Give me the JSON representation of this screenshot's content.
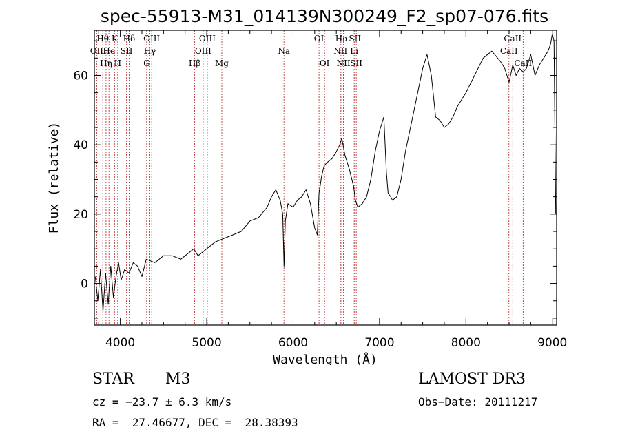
{
  "chart_data": {
    "type": "line",
    "title": "spec-55913-M31_014139N300249_F2_sp07-076.fits",
    "xlabel": "Wavelength (Å)",
    "ylabel": "Flux (relative)",
    "xlim": [
      3700,
      9050
    ],
    "ylim": [
      -12,
      73
    ],
    "xticks": [
      4000,
      5000,
      6000,
      7000,
      8000,
      9000
    ],
    "yticks": [
      0,
      20,
      40,
      60
    ],
    "series": [
      {
        "name": "spectrum",
        "x": [
          3710,
          3740,
          3770,
          3800,
          3830,
          3860,
          3890,
          3920,
          3950,
          3980,
          4010,
          4050,
          4100,
          4150,
          4200,
          4250,
          4300,
          4400,
          4500,
          4600,
          4700,
          4800,
          4850,
          4900,
          5000,
          5100,
          5200,
          5300,
          5400,
          5500,
          5600,
          5700,
          5750,
          5800,
          5850,
          5880,
          5895,
          5910,
          5940,
          6000,
          6050,
          6100,
          6150,
          6200,
          6250,
          6280,
          6300,
          6330,
          6360,
          6400,
          6450,
          6500,
          6540,
          6563,
          6600,
          6650,
          6700,
          6720,
          6750,
          6800,
          6850,
          6900,
          6950,
          7000,
          7050,
          7080,
          7100,
          7130,
          7150,
          7200,
          7250,
          7300,
          7400,
          7500,
          7550,
          7600,
          7650,
          7700,
          7750,
          7800,
          7850,
          7900,
          8000,
          8100,
          8200,
          8300,
          8400,
          8450,
          8500,
          8542,
          8580,
          8620,
          8662,
          8700,
          8750,
          8800,
          8850,
          8900,
          8950,
          8980,
          9000,
          9020,
          9040
        ],
        "y": [
          2,
          -5,
          4,
          -8,
          3,
          -6,
          5,
          -4,
          2,
          6,
          1,
          4,
          3,
          6,
          5,
          2,
          7,
          6,
          8,
          8,
          7,
          9,
          10,
          8,
          10,
          12,
          13,
          14,
          15,
          18,
          19,
          22,
          25,
          27,
          24,
          20,
          5,
          18,
          23,
          22,
          24,
          25,
          27,
          23,
          16,
          14,
          26,
          31,
          34,
          35,
          36,
          38,
          40,
          42,
          37,
          33,
          28,
          24,
          22,
          23,
          25,
          30,
          38,
          44,
          48,
          32,
          26,
          25,
          24,
          25,
          30,
          38,
          50,
          62,
          66,
          60,
          48,
          47,
          45,
          46,
          48,
          51,
          55,
          60,
          65,
          67,
          64,
          62,
          58,
          63,
          60,
          62,
          61,
          62,
          66,
          60,
          63,
          65,
          67,
          69,
          72,
          70,
          20
        ]
      }
    ],
    "emission_lines": [
      {
        "wavelength": 3727,
        "label": "OII",
        "row": 1
      },
      {
        "wavelength": 3797,
        "label": "Hθ",
        "row": 0
      },
      {
        "wavelength": 3835,
        "label": "Hη",
        "row": 2
      },
      {
        "wavelength": 3869,
        "label": "He",
        "row": 1
      },
      {
        "wavelength": 3934,
        "label": "K",
        "row": 0
      },
      {
        "wavelength": 3970,
        "label": "H",
        "row": 2
      },
      {
        "wavelength": 4072,
        "label": "SII",
        "row": 1
      },
      {
        "wavelength": 4102,
        "label": "Hδ",
        "row": 0
      },
      {
        "wavelength": 4305,
        "label": "G",
        "row": 2
      },
      {
        "wavelength": 4341,
        "label": "Hγ",
        "row": 1
      },
      {
        "wavelength": 4363,
        "label": "OIII",
        "row": 0
      },
      {
        "wavelength": 4861,
        "label": "Hβ",
        "row": 2
      },
      {
        "wavelength": 4959,
        "label": "OIII",
        "row": 1
      },
      {
        "wavelength": 5007,
        "label": "OIII",
        "row": 0
      },
      {
        "wavelength": 5175,
        "label": "Mg",
        "row": 2
      },
      {
        "wavelength": 5894,
        "label": "Na",
        "row": 1
      },
      {
        "wavelength": 6300,
        "label": "OI",
        "row": 0
      },
      {
        "wavelength": 6364,
        "label": "OI",
        "row": 2
      },
      {
        "wavelength": 6548,
        "label": "NII",
        "row": 1
      },
      {
        "wavelength": 6563,
        "label": "Hα",
        "row": 0
      },
      {
        "wavelength": 6583,
        "label": "NII",
        "row": 2
      },
      {
        "wavelength": 6707,
        "label": "Li",
        "row": 1
      },
      {
        "wavelength": 6716,
        "label": "SII",
        "row": 0
      },
      {
        "wavelength": 6731,
        "label": "SII",
        "row": 2
      },
      {
        "wavelength": 8498,
        "label": "CaII",
        "row": 1
      },
      {
        "wavelength": 8542,
        "label": "CaII",
        "row": 0
      },
      {
        "wavelength": 8662,
        "label": "CaII",
        "row": 2
      }
    ]
  },
  "info": {
    "object_class": "STAR",
    "subclass": "M3",
    "survey": "LAMOST DR3",
    "redshift": "cz = −23.7 ± 6.3 km/s",
    "obs_date": "Obs−Date: 20111217",
    "coords": "RA =  27.46677, DEC =  28.38393"
  },
  "colors": {
    "axes": "#000000",
    "spectrum": "#000000",
    "line_markers": "#b22222"
  }
}
